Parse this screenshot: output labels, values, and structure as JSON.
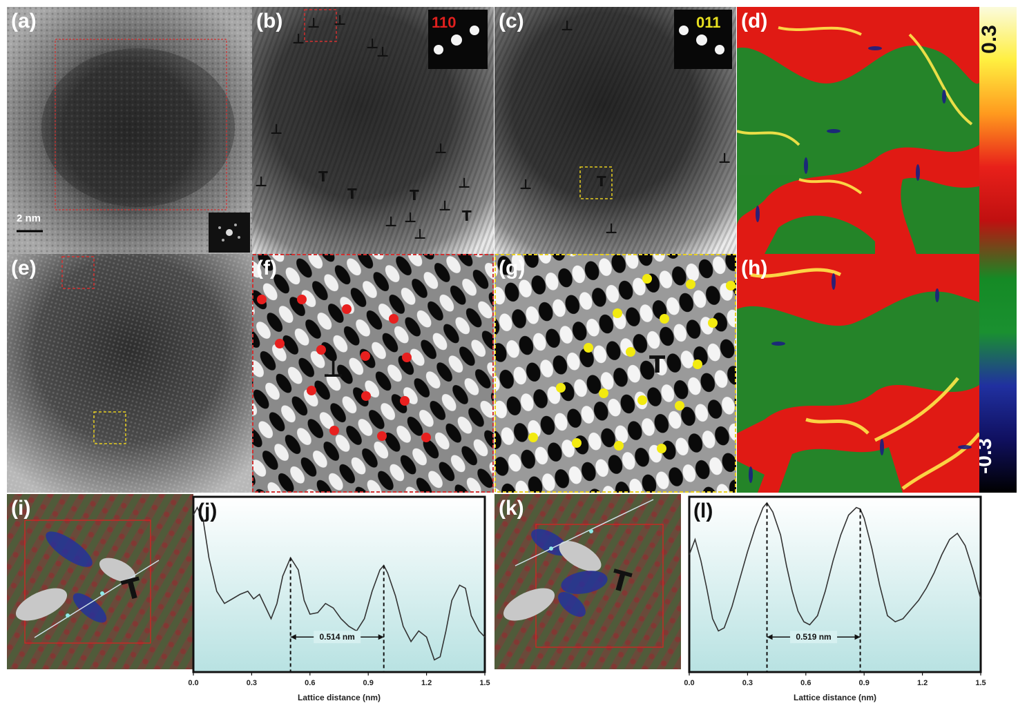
{
  "panels": {
    "a": {
      "label": "(a)",
      "scale_bar": "2 nm"
    },
    "b": {
      "label": "(b)",
      "inset_label": "110",
      "inset_color": "#e0201e"
    },
    "c": {
      "label": "(c)",
      "inset_label": "011",
      "inset_color": "#e8e020"
    },
    "d": {
      "label": "(d)"
    },
    "e": {
      "label": "(e)"
    },
    "f": {
      "label": "(f)",
      "dot_color": "#e8201f"
    },
    "g": {
      "label": "(g)",
      "dot_color": "#f2ea10"
    },
    "h": {
      "label": "(h)"
    },
    "i": {
      "label": "(i)"
    },
    "j": {
      "label": "(j)"
    },
    "k": {
      "label": "(k)"
    },
    "l": {
      "label": "(l)"
    }
  },
  "colorbar": {
    "max_label": "0.3",
    "min_label": "-0.3",
    "colors": [
      "#fbfbdc",
      "#ffef40",
      "#ff9a1e",
      "#e8201a",
      "#c01010",
      "#158a25",
      "#1a9030",
      "#2030a0",
      "#101060",
      "#000000"
    ]
  },
  "chart_data": [
    {
      "panel": "j",
      "type": "line",
      "xlabel": "Lattice distance (nm)",
      "ylabel": "",
      "xlim": [
        0.0,
        1.5
      ],
      "x_ticks": [
        "0.0",
        "0.3",
        "0.6",
        "0.9",
        "1.2",
        "1.5"
      ],
      "annotation": "0.514 nm",
      "markers_x": [
        0.5,
        0.98
      ],
      "series": [
        {
          "x": [
            0.0,
            0.02,
            0.05,
            0.08,
            0.12,
            0.16,
            0.2,
            0.24,
            0.28,
            0.31,
            0.34,
            0.37,
            0.4,
            0.43,
            0.46,
            0.5,
            0.54,
            0.57,
            0.6,
            0.64,
            0.68,
            0.72,
            0.76,
            0.8,
            0.84,
            0.88,
            0.92,
            0.96,
            0.98,
            1.0,
            1.04,
            1.08,
            1.12,
            1.16,
            1.2,
            1.24,
            1.27,
            1.3,
            1.33,
            1.37,
            1.4,
            1.43,
            1.47,
            1.5
          ],
          "y": [
            0.88,
            0.93,
            0.85,
            0.6,
            0.38,
            0.3,
            0.33,
            0.36,
            0.38,
            0.33,
            0.36,
            0.28,
            0.2,
            0.3,
            0.48,
            0.6,
            0.52,
            0.32,
            0.23,
            0.24,
            0.3,
            0.27,
            0.2,
            0.15,
            0.12,
            0.2,
            0.38,
            0.52,
            0.55,
            0.5,
            0.35,
            0.15,
            0.05,
            0.12,
            0.08,
            -0.07,
            -0.05,
            0.12,
            0.32,
            0.42,
            0.4,
            0.22,
            0.12,
            0.08
          ]
        }
      ]
    },
    {
      "panel": "l",
      "type": "line",
      "xlabel": "Lattice distance (nm)",
      "ylabel": "",
      "xlim": [
        0.0,
        1.5
      ],
      "x_ticks": [
        "0.0",
        "0.3",
        "0.6",
        "0.9",
        "1.2",
        "1.5"
      ],
      "annotation": "0.519 nm",
      "markers_x": [
        0.4,
        0.88
      ],
      "series": [
        {
          "x": [
            0.0,
            0.03,
            0.06,
            0.09,
            0.12,
            0.15,
            0.18,
            0.22,
            0.26,
            0.3,
            0.34,
            0.38,
            0.4,
            0.43,
            0.47,
            0.5,
            0.53,
            0.56,
            0.59,
            0.62,
            0.66,
            0.7,
            0.74,
            0.78,
            0.82,
            0.86,
            0.88,
            0.9,
            0.94,
            0.98,
            1.02,
            1.06,
            1.1,
            1.14,
            1.18,
            1.22,
            1.26,
            1.3,
            1.34,
            1.38,
            1.42,
            1.46,
            1.5
          ],
          "y": [
            0.62,
            0.72,
            0.58,
            0.4,
            0.2,
            0.12,
            0.14,
            0.28,
            0.46,
            0.64,
            0.8,
            0.93,
            0.96,
            0.9,
            0.75,
            0.55,
            0.38,
            0.25,
            0.18,
            0.16,
            0.22,
            0.38,
            0.58,
            0.75,
            0.88,
            0.93,
            0.92,
            0.86,
            0.66,
            0.42,
            0.22,
            0.18,
            0.2,
            0.26,
            0.32,
            0.4,
            0.5,
            0.62,
            0.72,
            0.76,
            0.68,
            0.52,
            0.33
          ]
        }
      ]
    }
  ]
}
